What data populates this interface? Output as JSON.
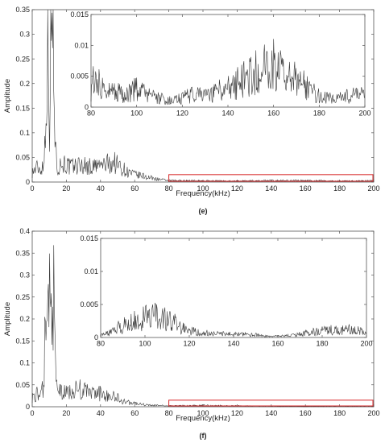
{
  "colors": {
    "signal": "#3a3a3a",
    "axis": "#555555",
    "highlight": "#d62728"
  },
  "chart_data": [
    {
      "type": "line",
      "panel_label": "(e)",
      "xlabel": "Frequency(kHz)",
      "ylabel": "Amplitude",
      "xlim": [
        0,
        200
      ],
      "ylim": [
        0,
        0.35
      ],
      "xticks": [
        "0",
        "20",
        "40",
        "60",
        "80",
        "100",
        "120",
        "140",
        "160",
        "180",
        "200"
      ],
      "yticks": [
        "0",
        "0.05",
        "0.1",
        "0.15",
        "0.2",
        "0.25",
        "0.3",
        "0.35"
      ],
      "highlight_region": {
        "x": [
          80,
          200
        ],
        "y": [
          0,
          0.015
        ]
      },
      "series": [
        {
          "x": [
            0,
            3,
            5,
            7,
            8,
            9,
            10,
            11,
            12,
            13,
            14,
            15,
            18,
            22,
            28,
            35,
            42,
            48,
            52,
            56,
            60,
            65,
            70,
            75,
            80,
            100,
            120,
            140,
            160,
            180,
            200
          ],
          "y": [
            0.02,
            0.03,
            0.025,
            0.04,
            0.16,
            0.34,
            0.12,
            0.3,
            0.31,
            0.16,
            0.05,
            0.03,
            0.04,
            0.03,
            0.035,
            0.03,
            0.035,
            0.04,
            0.03,
            0.02,
            0.015,
            0.012,
            0.008,
            0.005,
            0.003,
            0.0025,
            0.002,
            0.003,
            0.003,
            0.002,
            0.0025
          ]
        }
      ],
      "inset": {
        "xlim": [
          80,
          200
        ],
        "ylim": [
          0,
          0.015
        ],
        "xticks": [
          "80",
          "100",
          "120",
          "140",
          "160",
          "180",
          "200"
        ],
        "yticks": [
          "0",
          "0.005",
          "0.01",
          "0.015"
        ],
        "series": [
          {
            "x": [
              80,
              82,
              85,
              90,
              95,
              100,
              105,
              110,
              115,
              120,
              125,
              130,
              135,
              140,
              145,
              150,
              155,
              160,
              165,
              170,
              175,
              180,
              185,
              190,
              195,
              200
            ],
            "y": [
              0.003,
              0.006,
              0.003,
              0.0025,
              0.002,
              0.003,
              0.002,
              0.0015,
              0.001,
              0.0015,
              0.002,
              0.002,
              0.0025,
              0.003,
              0.004,
              0.005,
              0.006,
              0.0065,
              0.005,
              0.0045,
              0.003,
              0.002,
              0.0015,
              0.0015,
              0.002,
              0.002
            ]
          }
        ]
      }
    },
    {
      "type": "line",
      "panel_label": "(f)",
      "xlabel": "Frequency(kHz)",
      "ylabel": "Amplitude",
      "xlim": [
        0,
        200
      ],
      "ylim": [
        0,
        0.4
      ],
      "xticks": [
        "0",
        "20",
        "40",
        "60",
        "80",
        "100",
        "120",
        "140",
        "160",
        "180",
        "200"
      ],
      "yticks": [
        "0",
        "0.05",
        "0.1",
        "0.15",
        "0.2",
        "0.25",
        "0.3",
        "0.35",
        "0.4"
      ],
      "highlight_region": {
        "x": [
          80,
          200
        ],
        "y": [
          0,
          0.015
        ]
      },
      "series": [
        {
          "x": [
            0,
            3,
            5,
            7,
            8,
            9,
            10,
            11,
            12,
            13,
            14,
            15,
            18,
            22,
            28,
            35,
            40,
            45,
            50,
            55,
            60,
            65,
            70,
            75,
            80,
            100,
            120,
            140,
            160,
            180,
            200
          ],
          "y": [
            0.02,
            0.03,
            0.025,
            0.05,
            0.3,
            0.18,
            0.28,
            0.2,
            0.36,
            0.15,
            0.05,
            0.04,
            0.03,
            0.035,
            0.04,
            0.03,
            0.03,
            0.025,
            0.02,
            0.01,
            0.008,
            0.005,
            0.003,
            0.003,
            0.002,
            0.003,
            0.002,
            0.001,
            0.0005,
            0.001,
            0.001
          ]
        }
      ],
      "inset": {
        "xlim": [
          80,
          200
        ],
        "ylim": [
          0,
          0.015
        ],
        "xticks": [
          "80",
          "100",
          "120",
          "140",
          "160",
          "180",
          "200"
        ],
        "yticks": [
          "0",
          "0.005",
          "0.01",
          "0.015"
        ],
        "series": [
          {
            "x": [
              80,
              85,
              88,
              92,
              96,
              100,
              104,
              108,
              112,
              116,
              120,
              125,
              130,
              140,
              150,
              155,
              160,
              165,
              170,
              175,
              180,
              185,
              190,
              195,
              200
            ],
            "y": [
              0.0003,
              0.0008,
              0.0015,
              0.002,
              0.0025,
              0.003,
              0.0032,
              0.0028,
              0.0025,
              0.0015,
              0.001,
              0.0008,
              0.0006,
              0.0005,
              0.0004,
              0.0002,
              0.0002,
              0.0003,
              0.0005,
              0.0008,
              0.001,
              0.0012,
              0.0012,
              0.0011,
              0.001
            ]
          }
        ]
      }
    }
  ]
}
